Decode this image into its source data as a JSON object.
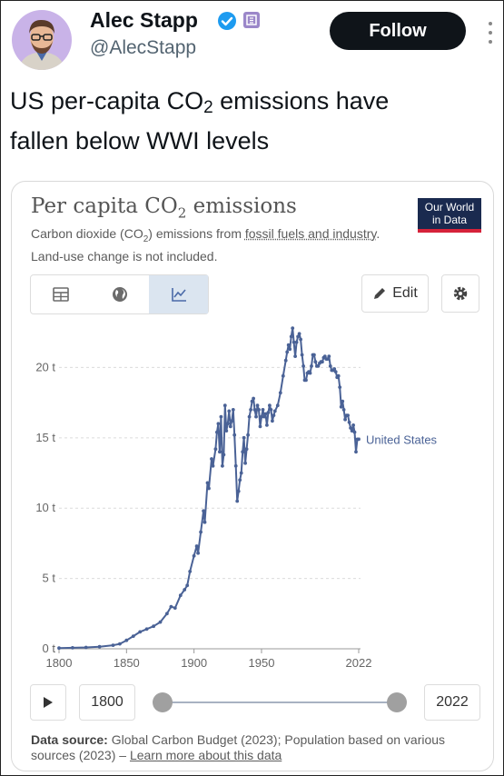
{
  "author": {
    "name": "Alec Stapp",
    "handle": "@AlecStapp"
  },
  "follow_label": "Follow",
  "tweet": {
    "line1_prefix": "US per-capita CO",
    "line1_sub": "2",
    "line1_suffix": " emissions have",
    "line2": "fallen below WWI levels"
  },
  "card": {
    "title_prefix": "Per capita CO",
    "title_sub": "2",
    "title_suffix": " emissions",
    "subtitle_a": "Carbon dioxide (CO",
    "subtitle_sub": "2",
    "subtitle_b": ") emissions from ",
    "subtitle_link": "fossil fuels and industry",
    "subtitle_c": ". Land-use change is not included.",
    "logo_line1": "Our World",
    "logo_line2": "in Data",
    "edit_label": "Edit",
    "tabs": [
      {
        "icon": "table-icon",
        "active": false
      },
      {
        "icon": "globe-icon",
        "active": false
      },
      {
        "icon": "line-chart-icon",
        "active": true
      }
    ],
    "timeline": {
      "start": "1800",
      "end": "2022"
    },
    "source_label": "Data source:",
    "source_text": " Global Carbon Budget (2023); Population based on various sources (2023) – ",
    "learn_more": "Learn more about this data"
  },
  "colors": {
    "line": "#4a6296",
    "logo_bg": "#1a2a4f",
    "logo_accent": "#d6223a",
    "verified": "#1d9bf0",
    "badge": "#9b87c9"
  },
  "chart_data": {
    "type": "line",
    "title": "Per capita CO₂ emissions",
    "xlim": [
      1800,
      2022
    ],
    "ylim": [
      0,
      23
    ],
    "x_ticks": [
      "1800",
      "1850",
      "1900",
      "1950",
      "2022"
    ],
    "y_ticks": [
      "0 t",
      "5 t",
      "10 t",
      "15 t",
      "20 t"
    ],
    "series": [
      {
        "name": "United States",
        "points": [
          [
            1800,
            0.05
          ],
          [
            1810,
            0.07
          ],
          [
            1820,
            0.1
          ],
          [
            1830,
            0.15
          ],
          [
            1840,
            0.25
          ],
          [
            1845,
            0.35
          ],
          [
            1850,
            0.6
          ],
          [
            1855,
            0.9
          ],
          [
            1860,
            1.2
          ],
          [
            1865,
            1.4
          ],
          [
            1870,
            1.6
          ],
          [
            1875,
            1.9
          ],
          [
            1880,
            2.5
          ],
          [
            1883,
            3.0
          ],
          [
            1886,
            2.9
          ],
          [
            1890,
            3.8
          ],
          [
            1893,
            4.2
          ],
          [
            1895,
            4.5
          ],
          [
            1897,
            5.5
          ],
          [
            1900,
            6.6
          ],
          [
            1902,
            7.3
          ],
          [
            1903,
            6.8
          ],
          [
            1905,
            8.3
          ],
          [
            1907,
            9.8
          ],
          [
            1908,
            9.0
          ],
          [
            1910,
            11.8
          ],
          [
            1911,
            11.4
          ],
          [
            1913,
            13.5
          ],
          [
            1914,
            13.0
          ],
          [
            1916,
            14.2
          ],
          [
            1917,
            15.4
          ],
          [
            1918,
            16.0
          ],
          [
            1919,
            14.0
          ],
          [
            1920,
            16.5
          ],
          [
            1921,
            13.0
          ],
          [
            1922,
            13.8
          ],
          [
            1923,
            17.3
          ],
          [
            1924,
            15.5
          ],
          [
            1925,
            16.0
          ],
          [
            1926,
            16.9
          ],
          [
            1927,
            15.8
          ],
          [
            1928,
            16.2
          ],
          [
            1929,
            17.0
          ],
          [
            1930,
            15.2
          ],
          [
            1931,
            13.0
          ],
          [
            1932,
            10.5
          ],
          [
            1933,
            11.2
          ],
          [
            1934,
            12.0
          ],
          [
            1935,
            12.5
          ],
          [
            1936,
            14.0
          ],
          [
            1937,
            15.0
          ],
          [
            1938,
            13.2
          ],
          [
            1939,
            14.2
          ],
          [
            1940,
            15.2
          ],
          [
            1941,
            16.5
          ],
          [
            1942,
            17.0
          ],
          [
            1943,
            17.6
          ],
          [
            1944,
            17.8
          ],
          [
            1945,
            17.0
          ],
          [
            1946,
            16.5
          ],
          [
            1947,
            17.3
          ],
          [
            1948,
            17.0
          ],
          [
            1949,
            15.8
          ],
          [
            1950,
            16.5
          ],
          [
            1951,
            17.0
          ],
          [
            1952,
            16.5
          ],
          [
            1953,
            16.7
          ],
          [
            1954,
            15.9
          ],
          [
            1955,
            16.8
          ],
          [
            1956,
            17.3
          ],
          [
            1957,
            17.0
          ],
          [
            1958,
            16.2
          ],
          [
            1959,
            16.6
          ],
          [
            1960,
            16.9
          ],
          [
            1962,
            17.3
          ],
          [
            1964,
            18.2
          ],
          [
            1966,
            19.4
          ],
          [
            1968,
            20.5
          ],
          [
            1969,
            21.1
          ],
          [
            1970,
            21.6
          ],
          [
            1971,
            21.3
          ],
          [
            1972,
            22.2
          ],
          [
            1973,
            22.8
          ],
          [
            1974,
            21.8
          ],
          [
            1975,
            20.8
          ],
          [
            1976,
            21.8
          ],
          [
            1977,
            22.2
          ],
          [
            1978,
            22.4
          ],
          [
            1979,
            22.0
          ],
          [
            1980,
            20.9
          ],
          [
            1981,
            20.1
          ],
          [
            1982,
            19.1
          ],
          [
            1983,
            19.1
          ],
          [
            1984,
            19.6
          ],
          [
            1985,
            19.7
          ],
          [
            1986,
            19.6
          ],
          [
            1987,
            20.1
          ],
          [
            1988,
            20.9
          ],
          [
            1989,
            20.9
          ],
          [
            1990,
            20.4
          ],
          [
            1991,
            20.1
          ],
          [
            1992,
            20.1
          ],
          [
            1993,
            20.3
          ],
          [
            1994,
            20.4
          ],
          [
            1995,
            20.4
          ],
          [
            1996,
            20.7
          ],
          [
            1997,
            20.8
          ],
          [
            1998,
            20.6
          ],
          [
            1999,
            20.6
          ],
          [
            2000,
            20.8
          ],
          [
            2001,
            20.1
          ],
          [
            2002,
            19.8
          ],
          [
            2003,
            19.8
          ],
          [
            2004,
            19.9
          ],
          [
            2005,
            19.7
          ],
          [
            2006,
            19.3
          ],
          [
            2007,
            19.4
          ],
          [
            2008,
            18.6
          ],
          [
            2009,
            17.2
          ],
          [
            2010,
            17.6
          ],
          [
            2011,
            17.0
          ],
          [
            2012,
            16.3
          ],
          [
            2013,
            16.6
          ],
          [
            2014,
            16.6
          ],
          [
            2015,
            16.1
          ],
          [
            2016,
            15.7
          ],
          [
            2017,
            15.5
          ],
          [
            2018,
            15.9
          ],
          [
            2019,
            15.4
          ],
          [
            2020,
            14.0
          ],
          [
            2021,
            14.9
          ],
          [
            2022,
            14.9
          ]
        ]
      }
    ]
  }
}
